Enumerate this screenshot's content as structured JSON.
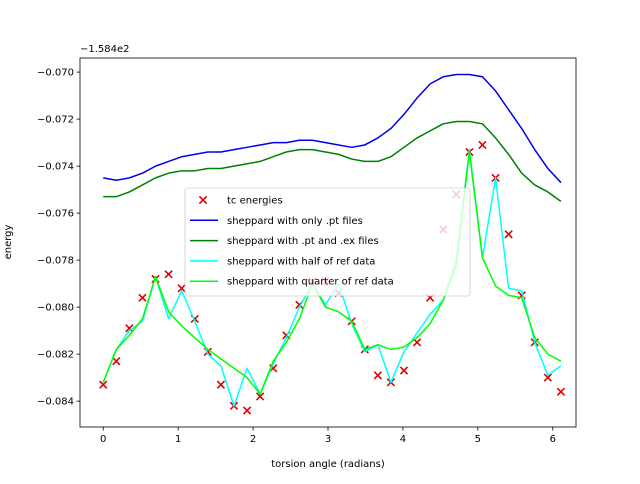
{
  "chart_data": {
    "type": "line",
    "title": "",
    "xlabel": "torsion angle (radians)",
    "ylabel": "energy",
    "y_offset_label": "−1.584e2",
    "xlim": [
      -0.31,
      6.31
    ],
    "ylim": [
      -0.0851,
      -0.0694
    ],
    "xticks": [
      0,
      1,
      2,
      3,
      4,
      5,
      6
    ],
    "xtick_labels": [
      "0",
      "1",
      "2",
      "3",
      "4",
      "5",
      "6"
    ],
    "yticks": [
      -0.084,
      -0.082,
      -0.08,
      -0.078,
      -0.076,
      -0.074,
      -0.072,
      -0.07
    ],
    "ytick_labels": [
      "−0.084",
      "−0.082",
      "−0.080",
      "−0.078",
      "−0.076",
      "−0.074",
      "−0.072",
      "−0.070"
    ],
    "grid": false,
    "legend_position": "center",
    "x": [
      0.0,
      0.1745,
      0.349,
      0.5236,
      0.6981,
      0.8727,
      1.0472,
      1.2217,
      1.3963,
      1.5708,
      1.7453,
      1.9199,
      2.0944,
      2.2689,
      2.4435,
      2.618,
      2.7925,
      2.9671,
      3.1416,
      3.3161,
      3.4907,
      3.6652,
      3.8397,
      4.0143,
      4.1888,
      4.3633,
      4.5379,
      4.7124,
      4.8869,
      5.0615,
      5.236,
      5.4105,
      5.5851,
      5.7596,
      5.9341,
      6.1087
    ],
    "series": [
      {
        "name": "tc energies",
        "kind": "scatter",
        "color": "#e00000",
        "values": [
          -0.0833,
          -0.0823,
          -0.0809,
          -0.0796,
          -0.0788,
          -0.0786,
          -0.0792,
          -0.0805,
          -0.0819,
          -0.0833,
          -0.0842,
          -0.0844,
          -0.0838,
          -0.0826,
          -0.0812,
          -0.0799,
          -0.0789,
          -0.0789,
          -0.0794,
          -0.0806,
          -0.0818,
          -0.0829,
          -0.0832,
          -0.0827,
          -0.0815,
          -0.0796,
          -0.0767,
          -0.0752,
          -0.0734,
          -0.0731,
          -0.0745,
          -0.0769,
          -0.0795,
          -0.0815,
          -0.083,
          -0.0836
        ]
      },
      {
        "name": "sheppard with only .pt files",
        "kind": "line",
        "color": "#0000ee",
        "values": [
          -0.0745,
          -0.0746,
          -0.0745,
          -0.0743,
          -0.074,
          -0.0738,
          -0.0736,
          -0.0735,
          -0.0734,
          -0.0734,
          -0.0733,
          -0.0732,
          -0.0731,
          -0.073,
          -0.073,
          -0.0729,
          -0.0729,
          -0.073,
          -0.0731,
          -0.0732,
          -0.0731,
          -0.0728,
          -0.0724,
          -0.0718,
          -0.0711,
          -0.0705,
          -0.0702,
          -0.0701,
          -0.0701,
          -0.0702,
          -0.0708,
          -0.0716,
          -0.0724,
          -0.0733,
          -0.0741,
          -0.0747
        ]
      },
      {
        "name": "sheppard with .pt and .ex files",
        "kind": "line",
        "color": "#008000",
        "values": [
          -0.0753,
          -0.0753,
          -0.0751,
          -0.0748,
          -0.0745,
          -0.0743,
          -0.0742,
          -0.0742,
          -0.0741,
          -0.0741,
          -0.074,
          -0.0739,
          -0.0738,
          -0.0736,
          -0.0734,
          -0.0733,
          -0.0733,
          -0.0734,
          -0.0735,
          -0.0737,
          -0.0738,
          -0.0738,
          -0.0736,
          -0.0732,
          -0.0728,
          -0.0725,
          -0.0722,
          -0.0721,
          -0.0721,
          -0.0722,
          -0.0728,
          -0.0735,
          -0.0743,
          -0.0748,
          -0.0751,
          -0.0755
        ]
      },
      {
        "name": "sheppard with half of ref data",
        "kind": "line",
        "color": "#00ffff",
        "values": [
          -0.0832,
          -0.0818,
          -0.081,
          -0.0806,
          -0.0787,
          -0.0805,
          -0.0793,
          -0.0806,
          -0.082,
          -0.0825,
          -0.0842,
          -0.0826,
          -0.0837,
          -0.0824,
          -0.0813,
          -0.08,
          -0.079,
          -0.0799,
          -0.079,
          -0.0807,
          -0.0819,
          -0.0816,
          -0.0832,
          -0.0819,
          -0.0811,
          -0.0803,
          -0.0797,
          -0.078,
          -0.0733,
          -0.0779,
          -0.0745,
          -0.0792,
          -0.0793,
          -0.0815,
          -0.0829,
          -0.0825
        ]
      },
      {
        "name": "sheppard with quarter of ref data",
        "kind": "line",
        "color": "#00ff00",
        "values": [
          -0.0832,
          -0.0818,
          -0.0812,
          -0.0805,
          -0.0787,
          -0.0802,
          -0.0808,
          -0.0813,
          -0.0818,
          -0.0822,
          -0.0826,
          -0.083,
          -0.0837,
          -0.0823,
          -0.0815,
          -0.0805,
          -0.079,
          -0.08,
          -0.0802,
          -0.0806,
          -0.0818,
          -0.0816,
          -0.0818,
          -0.0817,
          -0.0813,
          -0.0807,
          -0.0797,
          -0.0782,
          -0.0734,
          -0.0779,
          -0.0791,
          -0.0795,
          -0.0796,
          -0.0813,
          -0.082,
          -0.0823
        ]
      }
    ]
  }
}
